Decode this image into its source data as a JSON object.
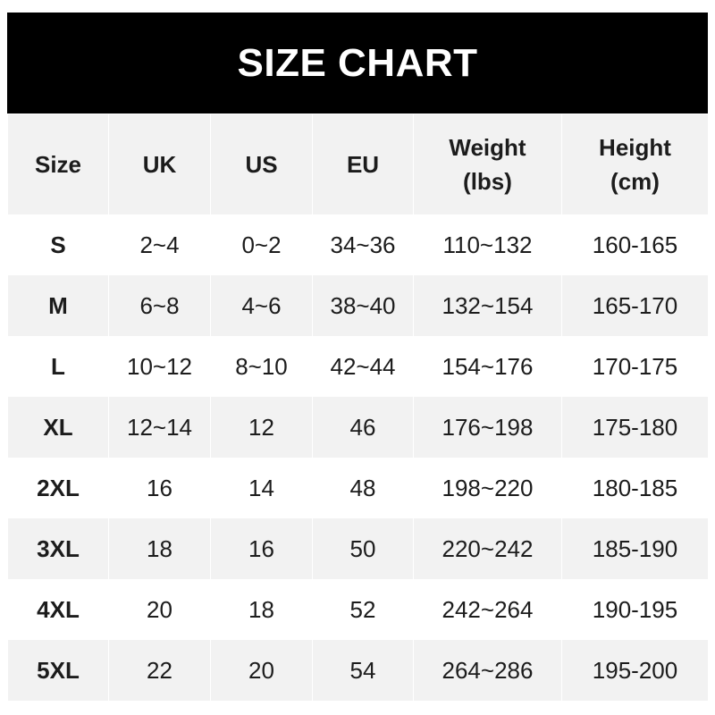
{
  "title": "SIZE CHART",
  "columns": [
    {
      "line1": "Size",
      "line2": ""
    },
    {
      "line1": "UK",
      "line2": ""
    },
    {
      "line1": "US",
      "line2": ""
    },
    {
      "line1": "EU",
      "line2": ""
    },
    {
      "line1": "Weight",
      "line2": "(lbs)"
    },
    {
      "line1": "Height",
      "line2": "(cm)"
    }
  ],
  "rows": [
    [
      "S",
      "2~4",
      "0~2",
      "34~36",
      "110~132",
      "160-165"
    ],
    [
      "M",
      "6~8",
      "4~6",
      "38~40",
      "132~154",
      "165-170"
    ],
    [
      "L",
      "10~12",
      "8~10",
      "42~44",
      "154~176",
      "170-175"
    ],
    [
      "XL",
      "12~14",
      "12",
      "46",
      "176~198",
      "175-180"
    ],
    [
      "2XL",
      "16",
      "14",
      "48",
      "198~220",
      "180-185"
    ],
    [
      "3XL",
      "18",
      "16",
      "50",
      "220~242",
      "185-190"
    ],
    [
      "4XL",
      "20",
      "18",
      "52",
      "242~264",
      "190-195"
    ],
    [
      "5XL",
      "22",
      "20",
      "54",
      "264~286",
      "195-200"
    ]
  ],
  "colors": {
    "banner": "#000000",
    "stripe": "#f2f2f2",
    "text": "#1c1c1c"
  }
}
